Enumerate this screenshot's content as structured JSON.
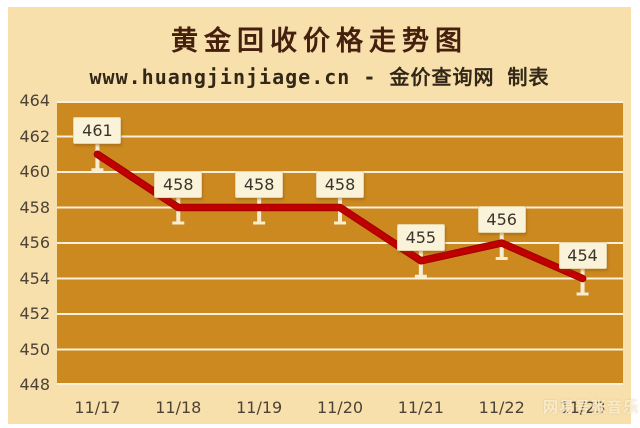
{
  "chart_data": {
    "type": "line",
    "title": "黄金回收价格走势图",
    "subtitle": "www.huangjinjiage.cn - 金价查询网 制表",
    "categories": [
      "11/17",
      "11/18",
      "11/19",
      "11/20",
      "11/21",
      "11/22",
      "11/23"
    ],
    "values": [
      461,
      458,
      458,
      458,
      455,
      456,
      454
    ],
    "ylim": [
      448,
      464
    ],
    "ytick_step": 2,
    "yticks": [
      464,
      462,
      460,
      458,
      456,
      454,
      452,
      450,
      448
    ],
    "grid": true,
    "legend": "none",
    "data_labels": [
      461,
      458,
      458,
      458,
      455,
      456,
      454
    ],
    "xlabel": "",
    "ylabel": ""
  },
  "watermark": {
    "text": "网易号张音乐"
  },
  "colors": {
    "frame": "#FFFFFF",
    "canvas_bg": "#F8E0AD",
    "plot_bg": "#CB8920",
    "gridline": "#F9F1DB",
    "line": "#C00000",
    "line_edge": "#A30000",
    "stem": "#F7EDD1",
    "title_text": "#45200E",
    "subtitle_text": "#332817",
    "axis_text": "#4C4236",
    "label_box_bg": "#FBF3D9",
    "label_text": "#3A342B"
  }
}
